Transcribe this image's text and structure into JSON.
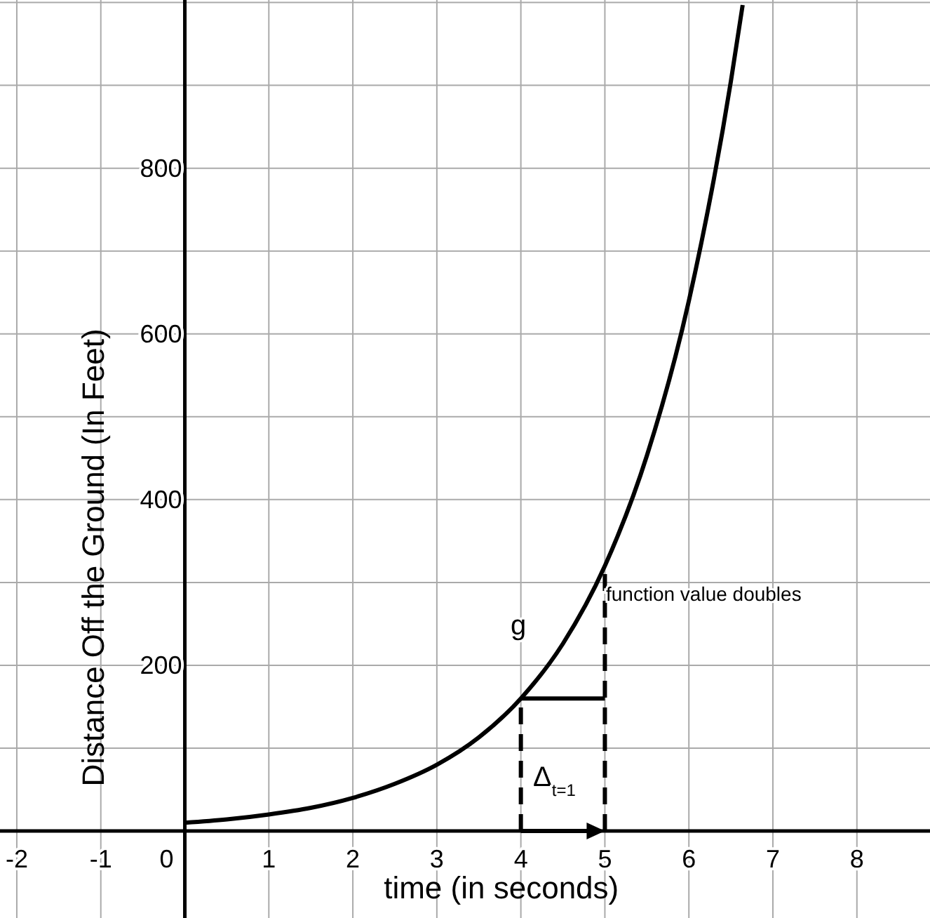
{
  "chart_data": {
    "type": "line",
    "xlabel": "time (in seconds)",
    "ylabel": "Distance Off the Ground (In Feet)",
    "xlim": [
      -2.2,
      8.87
    ],
    "ylim": [
      -105,
      1003
    ],
    "xticks": [
      -2,
      -1,
      0,
      1,
      2,
      3,
      4,
      5,
      6,
      7,
      8
    ],
    "yticks": [
      {
        "value": 100,
        "label": null
      },
      200,
      {
        "value": 300,
        "label": null
      },
      400,
      {
        "value": 500,
        "label": null
      },
      600,
      {
        "value": 700,
        "label": null
      },
      800,
      {
        "value": 900,
        "label": null
      },
      {
        "value": 1000,
        "label": null
      }
    ],
    "grid": true,
    "series": [
      {
        "color": "#000000",
        "line_style": "solid",
        "x": [
          0,
          0.5,
          1,
          1.5,
          2,
          2.5,
          3,
          3.5,
          4,
          4.5,
          5,
          5.5,
          6,
          6.5,
          6.64
        ],
        "values": [
          10,
          14,
          20,
          28,
          40,
          57,
          80,
          113,
          160,
          226,
          320,
          453,
          640,
          905,
          997
        ]
      },
      {
        "color": "#000000",
        "line_style": "dashed",
        "x": [
          4,
          4
        ],
        "values": [
          0,
          160
        ]
      },
      {
        "color": "#000000",
        "line_style": "dashed",
        "x": [
          5,
          5
        ],
        "values": [
          0,
          320
        ]
      },
      {
        "color": "#000000",
        "line_style": "solid",
        "x": [
          4,
          5
        ],
        "values": [
          160,
          160
        ]
      }
    ],
    "annotations": [
      "g",
      "function value doubles",
      "Δ$_{t=1}$"
    ]
  }
}
